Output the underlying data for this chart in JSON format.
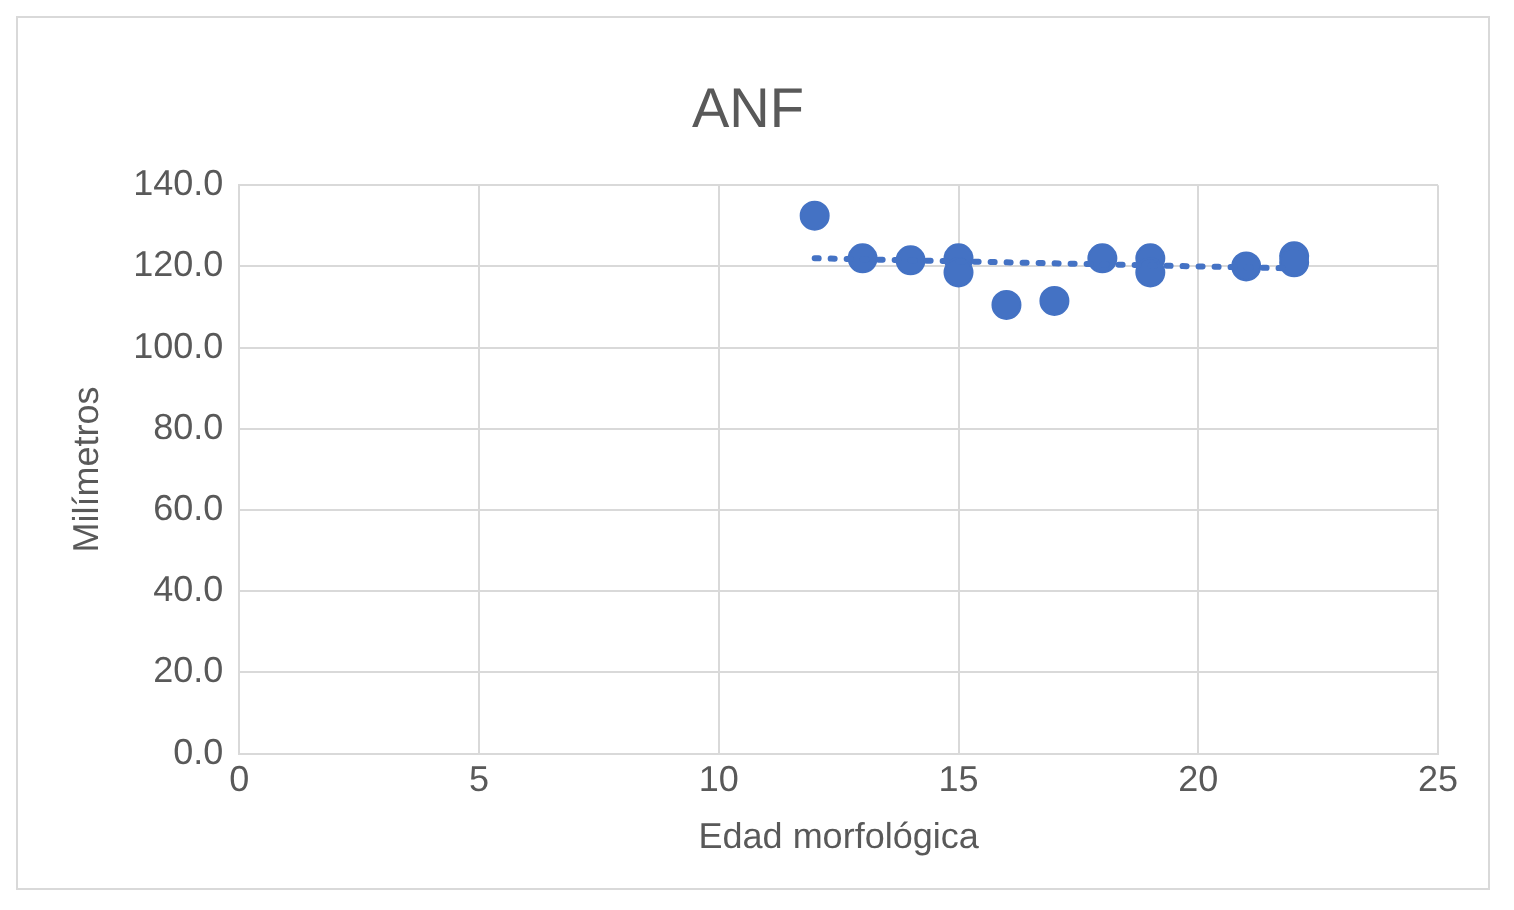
{
  "chart_data": {
    "type": "scatter",
    "title": "ANF",
    "xlabel": "Edad morfológica",
    "ylabel": "Milímetros",
    "xlim": [
      0,
      25
    ],
    "xticks": [
      0,
      5,
      10,
      15,
      20,
      25
    ],
    "ylim": [
      0,
      140
    ],
    "yticks": [
      {
        "value": 0,
        "label": "0.0"
      },
      {
        "value": 20,
        "label": "20.0"
      },
      {
        "value": 40,
        "label": "40.0"
      },
      {
        "value": 60,
        "label": "60.0"
      },
      {
        "value": 80,
        "label": "80.0"
      },
      {
        "value": 100,
        "label": "100.0"
      },
      {
        "value": 120,
        "label": "120.0"
      },
      {
        "value": 140,
        "label": "140.0"
      }
    ],
    "grid": true,
    "legend": false,
    "series": [
      {
        "color": "#4472c4",
        "marker": "circle",
        "x": [
          12,
          13,
          14,
          15,
          15,
          16,
          17,
          18,
          19,
          19,
          21,
          22,
          22
        ],
        "values": [
          132.5,
          122,
          121.5,
          122,
          118.5,
          110.5,
          111.5,
          122,
          122,
          118.5,
          120,
          122.5,
          121
        ]
      },
      {
        "type": "line",
        "color": "#4472c4",
        "line_style": "dotted",
        "marker": "none",
        "x": [
          12,
          22
        ],
        "values": [
          122,
          119.5
        ]
      }
    ]
  }
}
